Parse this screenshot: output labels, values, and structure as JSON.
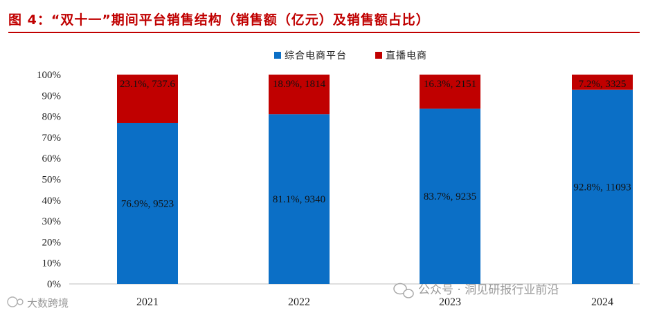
{
  "title": "图 4：“双十一”期间平台销售结构（销售额（亿元）及销售额占比）",
  "watermarks": {
    "left": "大数跨境",
    "right": "公众号 · 洞见研报行业前沿"
  },
  "colors": {
    "title": "#c00000",
    "series_a": "#0b6fc6",
    "series_b": "#c00000"
  },
  "chart_data": {
    "type": "bar",
    "stacked": true,
    "percent": true,
    "categories": [
      "2021",
      "2022",
      "2023",
      "2024"
    ],
    "series": [
      {
        "name": "综合电商平台",
        "values": [
          76.9,
          81.1,
          83.7,
          92.8
        ],
        "labels": [
          "76.9%, 9523",
          "81.1%, 9340",
          "83.7%, 9235",
          "92.8%, 11093"
        ]
      },
      {
        "name": "直播电商",
        "values": [
          23.1,
          18.9,
          16.3,
          7.2
        ],
        "labels": [
          "23.1%, 737.6",
          "18.9%, 1814",
          "16.3%, 2151",
          "7.2%, 3325"
        ]
      }
    ],
    "ylim": [
      0,
      100
    ],
    "yticks": [
      "0%",
      "10%",
      "20%",
      "30%",
      "40%",
      "50%",
      "60%",
      "70%",
      "80%",
      "90%",
      "100%"
    ],
    "legend_position": "top-center",
    "grid": false
  }
}
